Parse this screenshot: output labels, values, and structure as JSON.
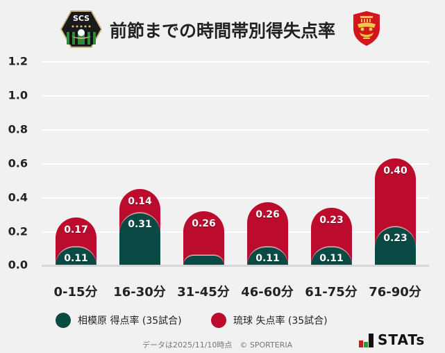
{
  "header": {
    "title": "前節までの時間帯別得失点率",
    "home_logo": {
      "icon": "sagamihara-crest-icon",
      "text": "SCS"
    },
    "away_logo": {
      "icon": "ryukyu-crest-icon"
    }
  },
  "colors": {
    "background": "#f1f1f1",
    "home_green": "#0b4a44",
    "away_red": "#bb0c2e",
    "gridline": "#ffffff",
    "baseline": "#d6d6d6"
  },
  "chart_data": {
    "type": "bar",
    "stacking": "overlapping-stacked (red total = green + red, green drawn in front)",
    "title": "前節までの時間帯別得失点率",
    "xlabel": "",
    "ylabel": "",
    "ylim": [
      0,
      1.2
    ],
    "yticks": [
      "0.0",
      "0.2",
      "0.4",
      "0.6",
      "0.8",
      "1.0",
      "1.2"
    ],
    "grid": true,
    "legend_position": "bottom",
    "categories": [
      "0-15分",
      "16-30分",
      "31-45分",
      "46-60分",
      "61-75分",
      "76-90分"
    ],
    "series": [
      {
        "name": "相模原 得点率 (35試合)",
        "color": "#0b4a44",
        "values": [
          0.11,
          0.31,
          0.06,
          0.11,
          0.11,
          0.23
        ],
        "labels": [
          "0.11",
          "0.31",
          "",
          "0.11",
          "0.11",
          "0.23"
        ]
      },
      {
        "name": "琉球 失点率 (35試合)",
        "color": "#bb0c2e",
        "values": [
          0.17,
          0.14,
          0.26,
          0.26,
          0.23,
          0.4
        ],
        "labels": [
          "0.17",
          "0.14",
          "0.26",
          "0.26",
          "0.23",
          "0.40"
        ]
      }
    ]
  },
  "legend": {
    "home": "相模原 得点率 (35試合)",
    "away": "琉球 失点率 (35試合)"
  },
  "footer": {
    "note": "データは2025/11/10時点　© SPORTERIA",
    "brand": "STATs"
  }
}
